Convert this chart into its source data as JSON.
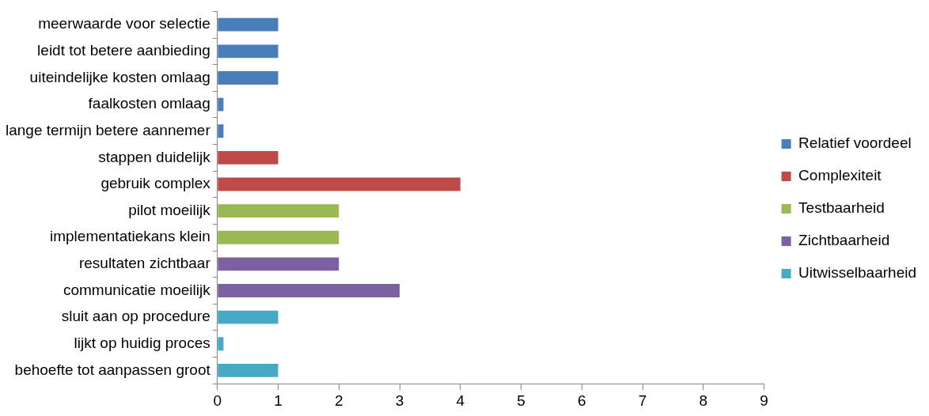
{
  "chart_data": {
    "type": "bar",
    "orientation": "horizontal",
    "categories": [
      "meerwaarde voor selectie",
      "leidt tot betere aanbieding",
      "uiteindelijke kosten omlaag",
      "faalkosten omlaag",
      "lange termijn betere aannemer",
      "stappen duidelijk",
      "gebruik complex",
      "pilot moeilijk",
      "implementatiekans klein",
      "resultaten zichtbaar",
      "communicatie moeilijk",
      "sluit aan op procedure",
      "lijkt op huidig proces",
      "behoefte tot aanpassen groot"
    ],
    "series": [
      {
        "name": "Relatief voordeel",
        "color": "#4a7ebb",
        "values": [
          1,
          1,
          1,
          0.1,
          0.1,
          null,
          null,
          null,
          null,
          null,
          null,
          null,
          null,
          null
        ]
      },
      {
        "name": "Complexiteit",
        "color": "#be4b48",
        "values": [
          null,
          null,
          null,
          null,
          null,
          1,
          4,
          null,
          null,
          null,
          null,
          null,
          null,
          null
        ]
      },
      {
        "name": "Testbaarheid",
        "color": "#98b954",
        "values": [
          null,
          null,
          null,
          null,
          null,
          null,
          null,
          2,
          2,
          null,
          null,
          null,
          null,
          null
        ]
      },
      {
        "name": "Zichtbaarheid",
        "color": "#7d60a0",
        "values": [
          null,
          null,
          null,
          null,
          null,
          null,
          null,
          null,
          null,
          2,
          3,
          null,
          null,
          null
        ]
      },
      {
        "name": "Uitwisselbaarheid",
        "color": "#46aac5",
        "values": [
          null,
          null,
          null,
          null,
          null,
          null,
          null,
          null,
          null,
          null,
          null,
          1,
          0.1,
          1
        ]
      }
    ],
    "xlim": [
      0,
      9
    ],
    "xticks": [
      0,
      1,
      2,
      3,
      4,
      5,
      6,
      7,
      8,
      9
    ],
    "grid": false,
    "legend": "right"
  }
}
